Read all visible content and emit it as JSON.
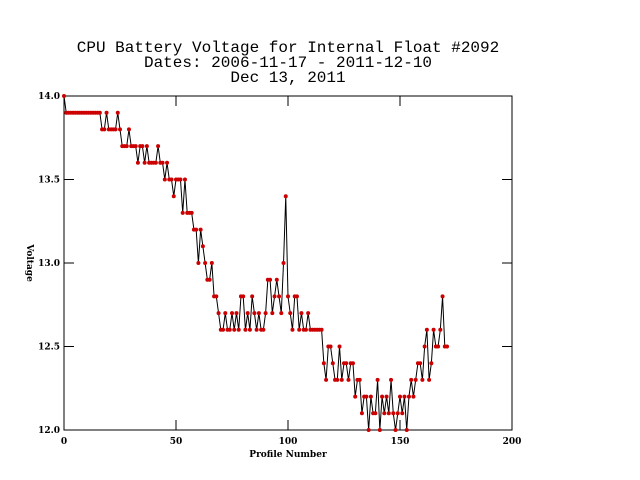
{
  "chart_data": {
    "type": "line",
    "title": [
      "CPU Battery Voltage for Internal Float #2092",
      "Dates:  2006-11-17 -  2011-12-10",
      "Dec 13, 2011"
    ],
    "xlabel": "Profile Number",
    "ylabel": "Voltage",
    "x": [
      0,
      1,
      2,
      3,
      4,
      5,
      6,
      7,
      8,
      9,
      10,
      11,
      12,
      13,
      14,
      15,
      16,
      17,
      18,
      19,
      20,
      21,
      22,
      23,
      24,
      25,
      26,
      27,
      28,
      29,
      30,
      31,
      32,
      33,
      34,
      35,
      36,
      37,
      38,
      39,
      40,
      41,
      42,
      43,
      44,
      45,
      46,
      47,
      48,
      49,
      50,
      51,
      52,
      53,
      54,
      55,
      56,
      57,
      58,
      59,
      60,
      61,
      62,
      63,
      64,
      65,
      66,
      67,
      68,
      69,
      70,
      71,
      72,
      73,
      74,
      75,
      76,
      77,
      78,
      79,
      80,
      81,
      82,
      83,
      84,
      85,
      86,
      87,
      88,
      89,
      90,
      91,
      92,
      93,
      94,
      95,
      96,
      97,
      98,
      99,
      100,
      101,
      102,
      103,
      104,
      105,
      106,
      107,
      108,
      109,
      110,
      111,
      112,
      113,
      114,
      115,
      116,
      117,
      118,
      119,
      120,
      121,
      122,
      123,
      124,
      125,
      126,
      127,
      128,
      129,
      130,
      131,
      132,
      133,
      134,
      135,
      136,
      137,
      138,
      139,
      140,
      141,
      142,
      143,
      144,
      145,
      146,
      147,
      148,
      149,
      150,
      151,
      152,
      153,
      154,
      155,
      156,
      157,
      158,
      159,
      160,
      161,
      162,
      163,
      164,
      165,
      166,
      167,
      168,
      169,
      170,
      171
    ],
    "series": [
      {
        "name": "Voltage",
        "color": "#000000",
        "marker_color": "#cc0000",
        "values": [
          14.0,
          13.9,
          13.9,
          13.9,
          13.9,
          13.9,
          13.9,
          13.9,
          13.9,
          13.9,
          13.9,
          13.9,
          13.9,
          13.9,
          13.9,
          13.9,
          13.9,
          13.8,
          13.8,
          13.9,
          13.8,
          13.8,
          13.8,
          13.8,
          13.9,
          13.8,
          13.7,
          13.7,
          13.7,
          13.8,
          13.7,
          13.7,
          13.7,
          13.6,
          13.7,
          13.7,
          13.6,
          13.7,
          13.6,
          13.6,
          13.6,
          13.6,
          13.7,
          13.6,
          13.6,
          13.5,
          13.6,
          13.5,
          13.5,
          13.4,
          13.5,
          13.5,
          13.5,
          13.3,
          13.5,
          13.3,
          13.3,
          13.3,
          13.2,
          13.2,
          13.0,
          13.2,
          13.1,
          13.0,
          12.9,
          12.9,
          13.0,
          12.8,
          12.8,
          12.7,
          12.6,
          12.6,
          12.7,
          12.6,
          12.6,
          12.7,
          12.6,
          12.7,
          12.6,
          12.8,
          12.8,
          12.6,
          12.7,
          12.6,
          12.8,
          12.7,
          12.6,
          12.7,
          12.6,
          12.6,
          12.7,
          12.9,
          12.9,
          12.7,
          12.8,
          12.9,
          12.8,
          12.7,
          13.0,
          13.4,
          12.8,
          12.7,
          12.6,
          12.8,
          12.8,
          12.6,
          12.7,
          12.6,
          12.6,
          12.7,
          12.6,
          12.6,
          12.6,
          12.6,
          12.6,
          12.6,
          12.4,
          12.3,
          12.5,
          12.5,
          12.4,
          12.3,
          12.3,
          12.5,
          12.3,
          12.4,
          12.4,
          12.3,
          12.4,
          12.4,
          12.2,
          12.3,
          12.3,
          12.1,
          12.2,
          12.2,
          12.0,
          12.2,
          12.1,
          12.1,
          12.3,
          12.0,
          12.2,
          12.1,
          12.2,
          12.1,
          12.3,
          12.1,
          12.0,
          12.1,
          12.2,
          12.1,
          12.2,
          12.0,
          12.2,
          12.3,
          12.2,
          12.3,
          12.4,
          12.4,
          12.3,
          12.5,
          12.6,
          12.3,
          12.4,
          12.6,
          12.5,
          12.5,
          12.6,
          12.8,
          12.5,
          12.5
        ]
      }
    ],
    "xlim": [
      0,
      200
    ],
    "xticks": [
      0,
      50,
      100,
      150,
      200
    ],
    "ylim": [
      12,
      14
    ],
    "yticks": [
      {
        "value": 12,
        "label": "12.0"
      },
      12.5,
      {
        "value": 13,
        "label": "13.0"
      },
      13.5,
      {
        "value": 14,
        "label": "14.0"
      }
    ],
    "grid": false
  }
}
